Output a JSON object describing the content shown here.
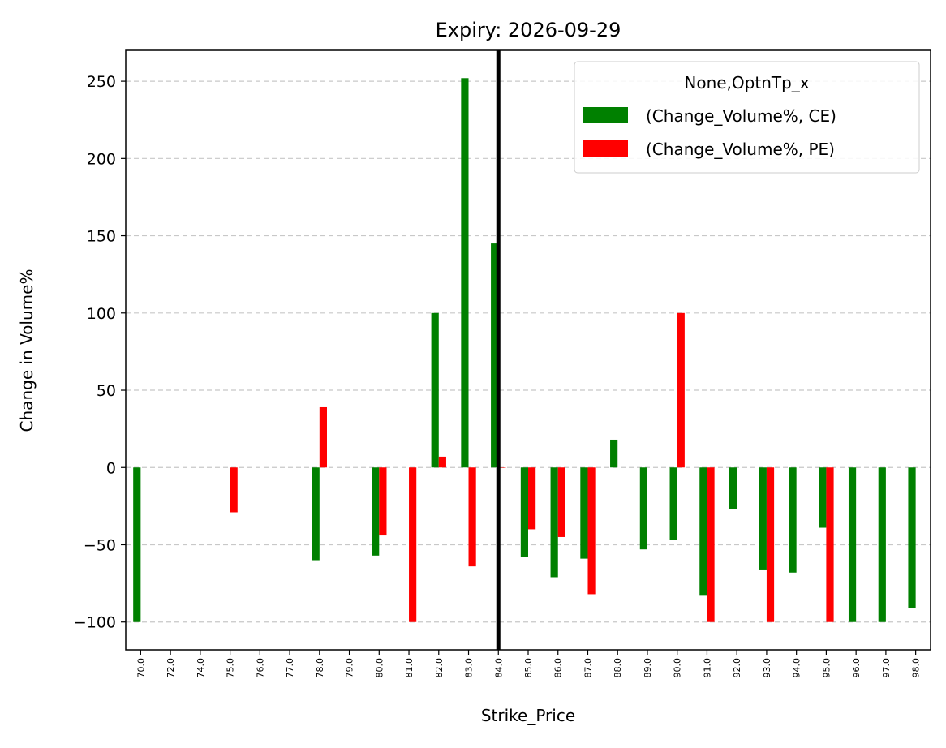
{
  "chart_data": {
    "type": "bar",
    "title": "Expiry: 2026-09-29",
    "xlabel": "Strike_Price",
    "ylabel": "Change in Volume%",
    "categories": [
      "70.0",
      "72.0",
      "74.0",
      "75.0",
      "76.0",
      "77.0",
      "78.0",
      "79.0",
      "80.0",
      "81.0",
      "82.0",
      "83.0",
      "84.0",
      "85.0",
      "86.0",
      "87.0",
      "88.0",
      "89.0",
      "90.0",
      "91.0",
      "92.0",
      "93.0",
      "94.0",
      "95.0",
      "96.0",
      "97.0",
      "98.0"
    ],
    "series": [
      {
        "name": "(Change_Volume%, CE)",
        "color": "#008000",
        "values": [
          -100,
          null,
          null,
          null,
          null,
          null,
          -60,
          null,
          -57,
          null,
          100,
          252,
          145,
          -58,
          -71,
          -59,
          18,
          -53,
          -47,
          -83,
          -27,
          -66,
          -68,
          -39,
          -100,
          -100,
          -91
        ]
      },
      {
        "name": "(Change_Volume%, PE)",
        "color": "#ff0000",
        "values": [
          null,
          null,
          null,
          -29,
          null,
          null,
          39,
          null,
          -44,
          -100,
          7,
          -64,
          0,
          -40,
          -45,
          -82,
          null,
          null,
          100,
          -100,
          null,
          -100,
          null,
          -100,
          null,
          null,
          null
        ]
      }
    ],
    "legend_title": "None,OptnTp_x",
    "legend": "upper right",
    "ylim": [
      -118,
      270
    ],
    "yticks": [
      {
        "value": -100,
        "label": "−100"
      },
      {
        "value": -50,
        "label": "−50"
      },
      0,
      50,
      100,
      150,
      200,
      250
    ],
    "grid": true,
    "vline_at": "84.0"
  }
}
